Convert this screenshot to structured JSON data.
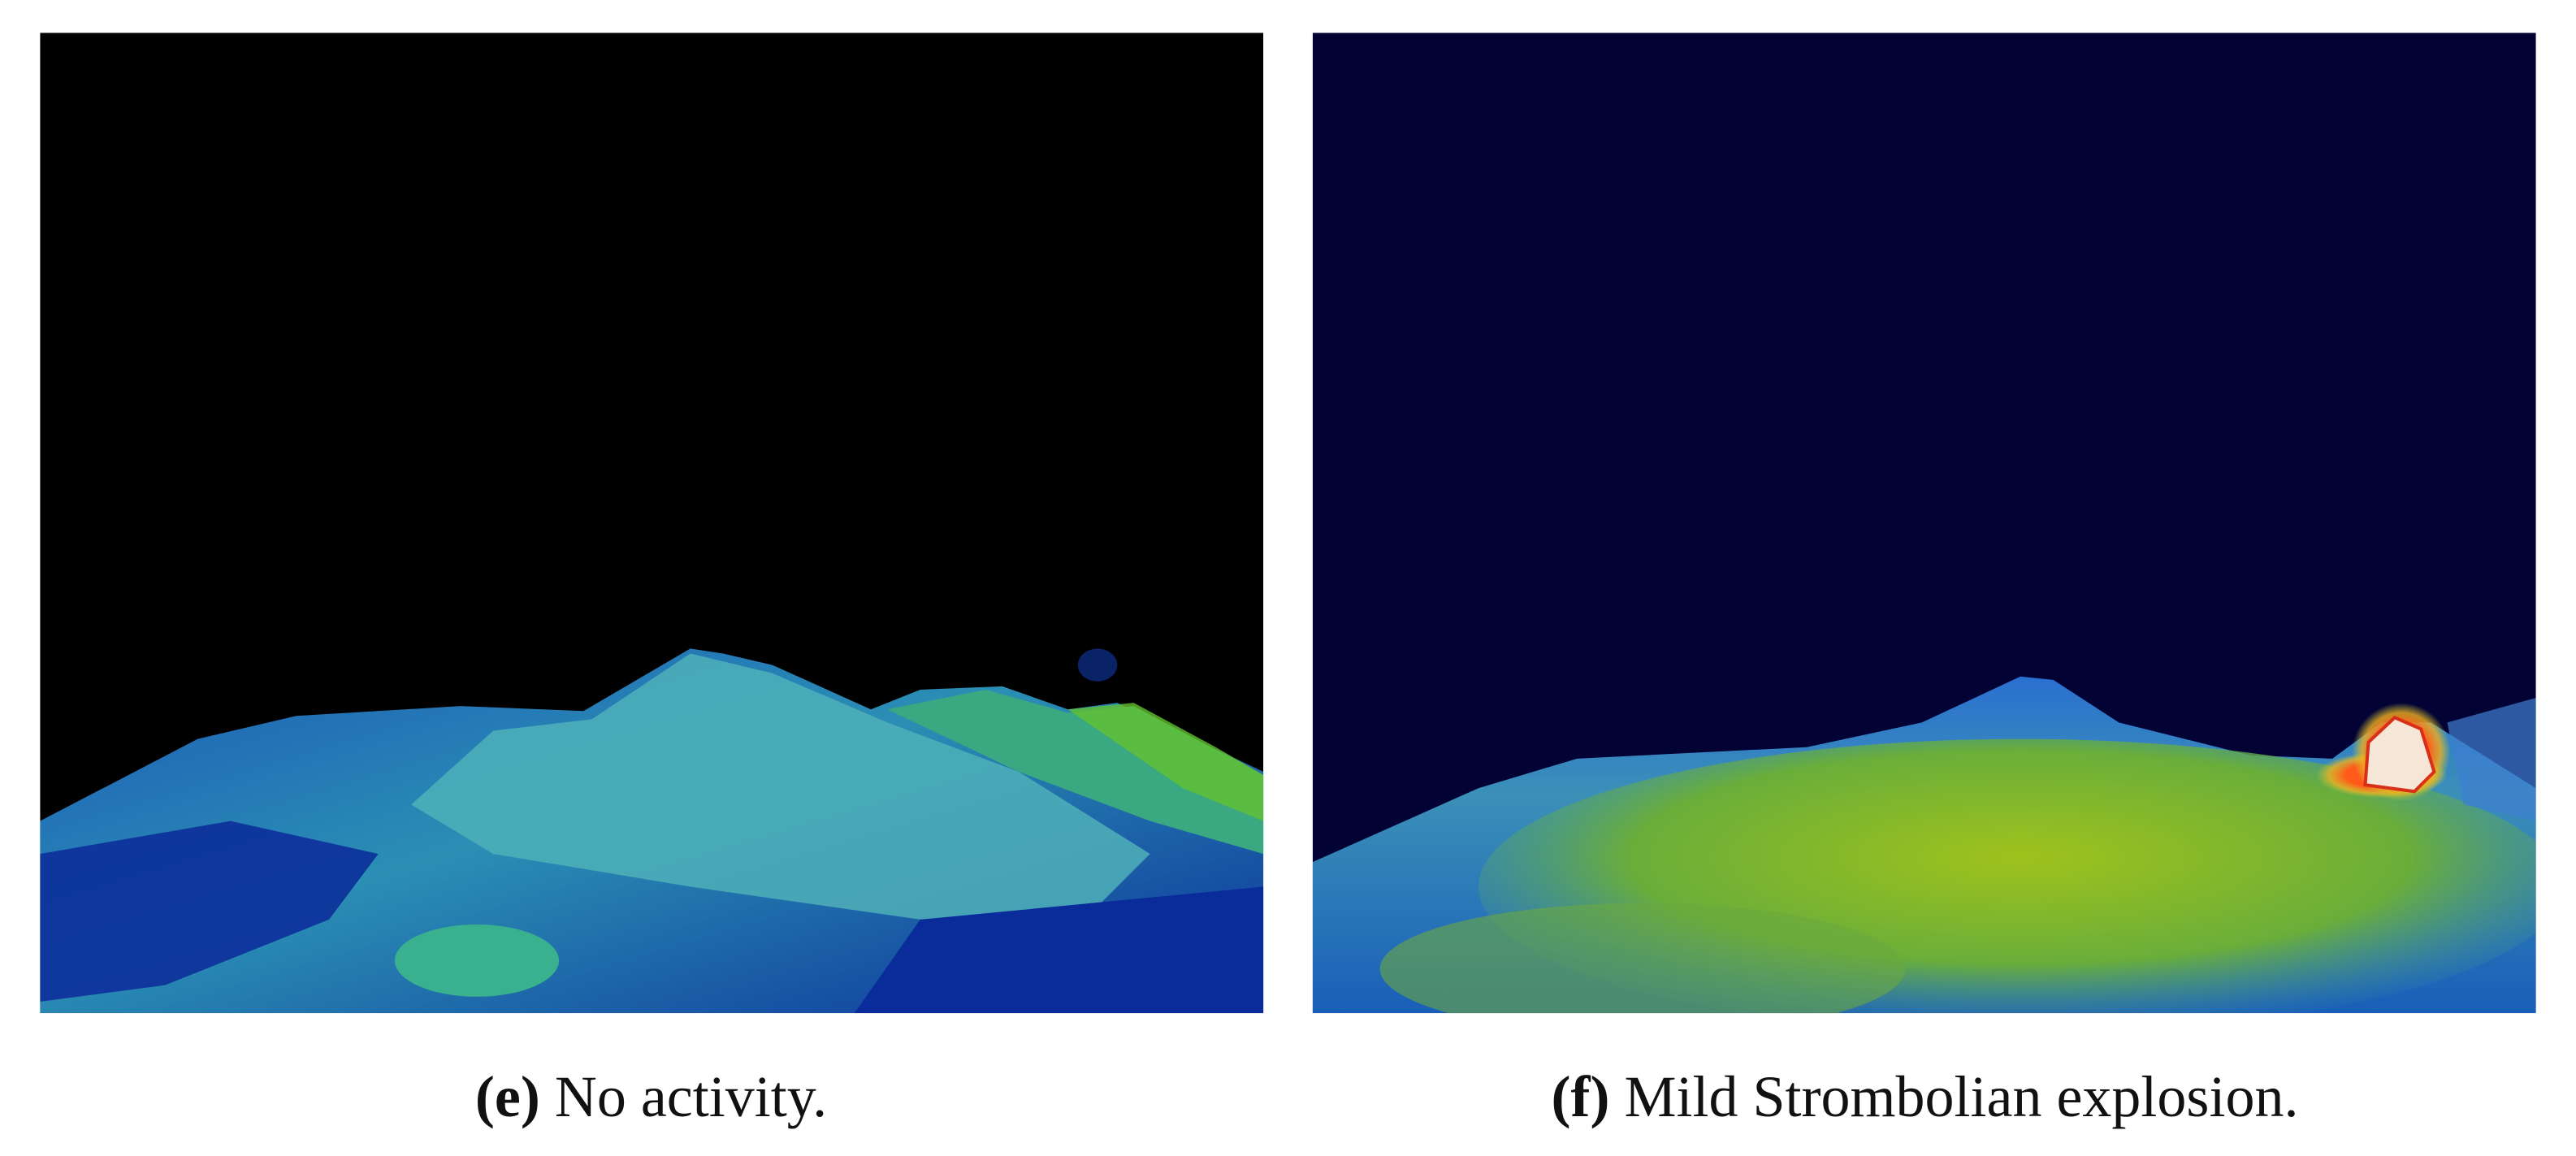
{
  "panels": [
    {
      "label": "(e)",
      "caption": "No activity."
    },
    {
      "label": "(f)",
      "caption": "Mild Strombolian explosion."
    }
  ]
}
